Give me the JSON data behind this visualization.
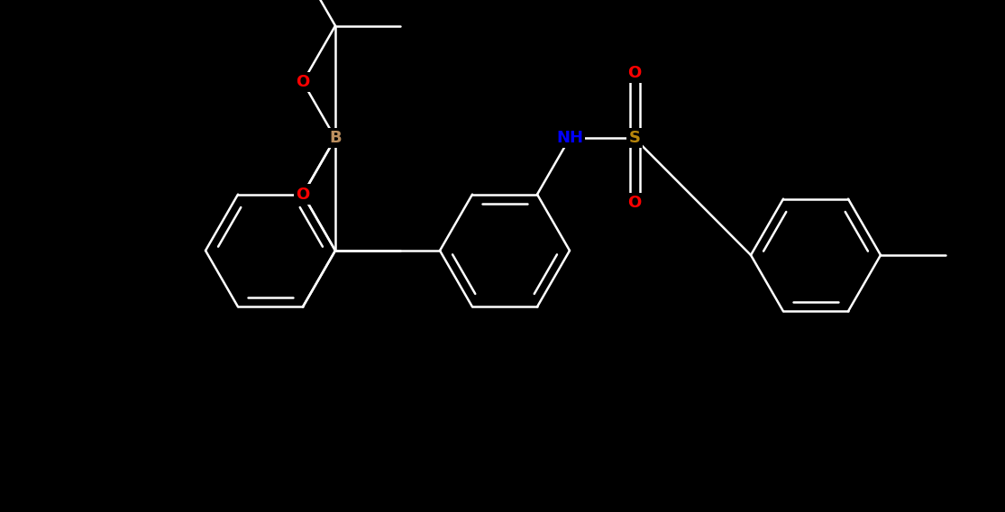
{
  "bg": "#000000",
  "bond_color": "#ffffff",
  "lw": 1.8,
  "atom_colors": {
    "B": "#bc8f5f",
    "O": "#ff0000",
    "N": "#0000ff",
    "S": "#b8860b",
    "C": "#ffffff"
  },
  "fs": 13,
  "fig_w": 11.15,
  "fig_h": 5.68,
  "dbl_off": 0.035
}
